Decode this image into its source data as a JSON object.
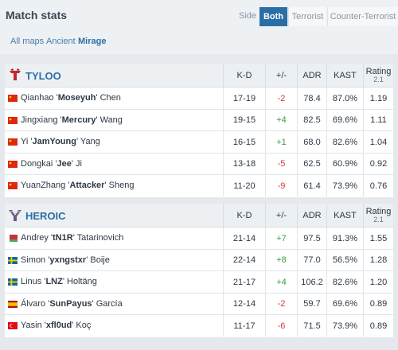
{
  "header": {
    "title": "Match stats",
    "side_label": "Side",
    "sides": [
      "Both",
      "Terrorist",
      "Counter-Terrorist"
    ],
    "active_side": "Both"
  },
  "maps": {
    "items": [
      "All maps",
      "Ancient",
      "Mirage"
    ],
    "active": "Mirage"
  },
  "columns": {
    "kd": "K-D",
    "pm": "+/-",
    "adr": "ADR",
    "kast": "KAST",
    "rating": "Rating",
    "rating_sub": "2.1"
  },
  "teams": [
    {
      "name": "TYLOO",
      "players": [
        {
          "first": "Qianhao",
          "nick": "Moseyuh",
          "last": "Chen",
          "flag": "cn",
          "kd": "17-19",
          "pm": "-2",
          "adr": "78.4",
          "kast": "87.0%",
          "rating": "1.19"
        },
        {
          "first": "Jingxiang",
          "nick": "Mercury",
          "last": "Wang",
          "flag": "cn",
          "kd": "19-15",
          "pm": "+4",
          "adr": "82.5",
          "kast": "69.6%",
          "rating": "1.11"
        },
        {
          "first": "Yi",
          "nick": "JamYoung",
          "last": "Yang",
          "flag": "cn",
          "kd": "16-15",
          "pm": "+1",
          "adr": "68.0",
          "kast": "82.6%",
          "rating": "1.04"
        },
        {
          "first": "Dongkai",
          "nick": "Jee",
          "last": "Ji",
          "flag": "cn",
          "kd": "13-18",
          "pm": "-5",
          "adr": "62.5",
          "kast": "60.9%",
          "rating": "0.92"
        },
        {
          "first": "YuanZhang",
          "nick": "Attacker",
          "last": "Sheng",
          "flag": "cn",
          "kd": "11-20",
          "pm": "-9",
          "adr": "61.4",
          "kast": "73.9%",
          "rating": "0.76"
        }
      ]
    },
    {
      "name": "HEROIC",
      "players": [
        {
          "first": "Andrey",
          "nick": "tN1R",
          "last": "Tatarinovich",
          "flag": "by",
          "kd": "21-14",
          "pm": "+7",
          "adr": "97.5",
          "kast": "91.3%",
          "rating": "1.55"
        },
        {
          "first": "Simon",
          "nick": "yxngstxr",
          "last": "Boije",
          "flag": "se",
          "kd": "22-14",
          "pm": "+8",
          "adr": "77.0",
          "kast": "56.5%",
          "rating": "1.28"
        },
        {
          "first": "Linus",
          "nick": "LNZ",
          "last": "Holtäng",
          "flag": "se",
          "kd": "21-17",
          "pm": "+4",
          "adr": "106.2",
          "kast": "82.6%",
          "rating": "1.20"
        },
        {
          "first": "Álvaro",
          "nick": "SunPayus",
          "last": "García",
          "flag": "es",
          "kd": "12-14",
          "pm": "-2",
          "adr": "59.7",
          "kast": "69.6%",
          "rating": "0.89"
        },
        {
          "first": "Yasin",
          "nick": "xfl0ud",
          "last": "Koç",
          "flag": "tr",
          "kd": "11-17",
          "pm": "-6",
          "adr": "71.5",
          "kast": "73.9%",
          "rating": "0.89"
        }
      ]
    }
  ],
  "colors": {
    "accent": "#2b6ea5",
    "positive": "#3a9c3a",
    "negative": "#d63d3d"
  }
}
